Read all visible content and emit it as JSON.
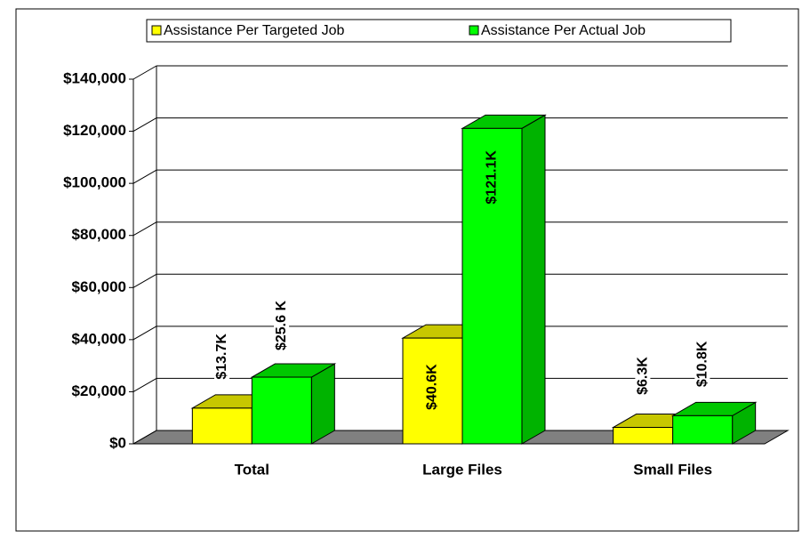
{
  "chart_data": {
    "type": "bar3d",
    "categories": [
      "Total",
      "Large Files",
      "Small Files"
    ],
    "series": [
      {
        "name": "Assistance Per Targeted Job",
        "color": "#ffff00",
        "values": [
          13700,
          40600,
          6300
        ],
        "value_labels": [
          "$13.7K",
          "$40.6K",
          "$6.3K"
        ]
      },
      {
        "name": "Assistance Per Actual Job",
        "color": "#00ff00",
        "values": [
          25600,
          121100,
          10800
        ],
        "value_labels": [
          "$25.6 K",
          "$121.1K",
          "$10.8K"
        ]
      }
    ],
    "ylim": [
      0,
      140000
    ],
    "yticks": [
      {
        "value": 0,
        "label": "$0"
      },
      {
        "value": 20000,
        "label": "$20,000"
      },
      {
        "value": 40000,
        "label": "$40,000"
      },
      {
        "value": 60000,
        "label": "$60,000"
      },
      {
        "value": 80000,
        "label": "$80,000"
      },
      {
        "value": 100000,
        "label": "$100,000"
      },
      {
        "value": 120000,
        "label": "$120,000"
      },
      {
        "value": 140000,
        "label": "$140,000"
      }
    ],
    "grid": true,
    "legend": "top"
  }
}
